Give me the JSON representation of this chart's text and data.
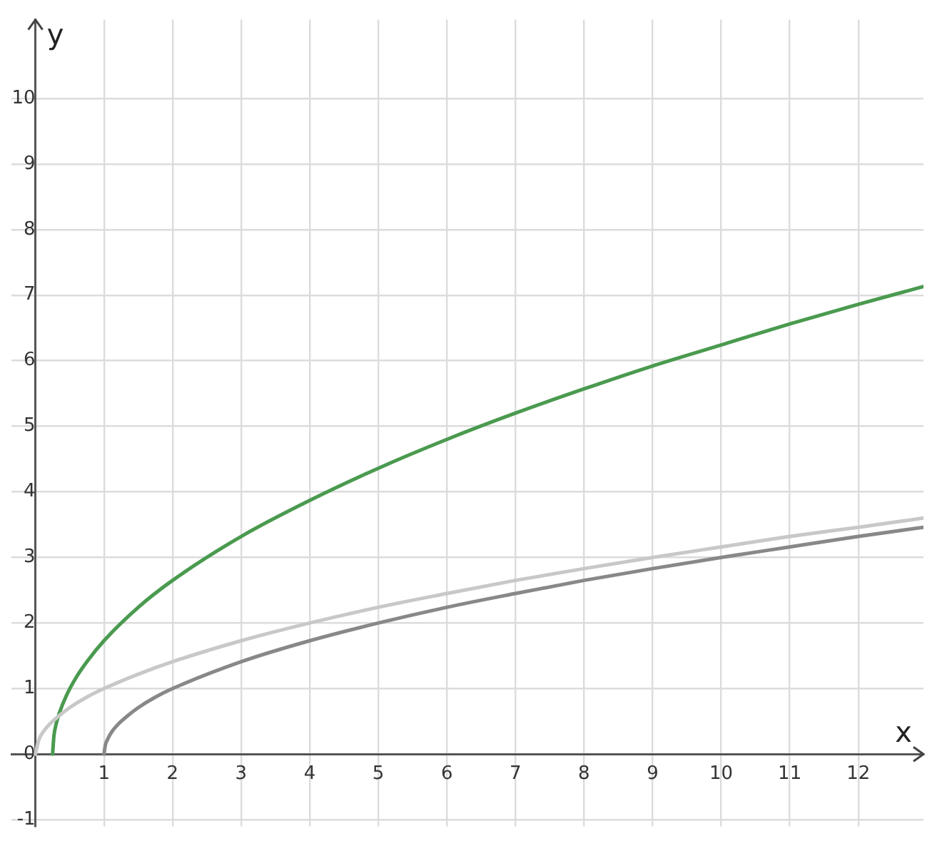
{
  "chart_data": {
    "type": "line",
    "xlabel": "x",
    "ylabel": "y",
    "xlim": [
      -0.35,
      12.95
    ],
    "ylim": [
      -1.1,
      11.2
    ],
    "xticks": [
      {
        "value": 0,
        "label": null
      },
      1,
      2,
      3,
      4,
      5,
      6,
      7,
      8,
      9,
      10,
      11,
      12
    ],
    "yticks": [
      -1,
      0,
      1,
      2,
      3,
      4,
      5,
      6,
      7,
      8,
      9,
      10
    ],
    "grid": true,
    "legend": false,
    "marker": "none",
    "line_style": "solid",
    "series": [
      {
        "color": "#c8c8c8",
        "x": [
          0,
          0.05,
          0.1,
          0.2,
          0.35,
          0.5,
          0.75,
          1,
          1.5,
          2,
          3,
          4,
          5,
          6,
          7,
          8,
          9,
          10,
          11,
          12,
          12.95
        ],
        "values": [
          0,
          0.22,
          0.32,
          0.45,
          0.59,
          0.71,
          0.87,
          1,
          1.22,
          1.41,
          1.73,
          2,
          2.24,
          2.45,
          2.65,
          2.83,
          3,
          3.16,
          3.32,
          3.46,
          3.6
        ]
      },
      {
        "color": "#888888",
        "x": [
          1,
          1.02,
          1.05,
          1.1,
          1.2,
          1.35,
          1.5,
          1.75,
          2,
          3,
          4,
          5,
          6,
          7,
          8,
          9,
          10,
          11,
          12,
          12.95
        ],
        "values": [
          0,
          0.14,
          0.22,
          0.32,
          0.45,
          0.59,
          0.71,
          0.87,
          1,
          1.41,
          1.73,
          2,
          2.24,
          2.45,
          2.65,
          2.83,
          3,
          3.16,
          3.32,
          3.46
        ]
      },
      {
        "color": "#4a9a4f",
        "x": [
          0.25,
          0.27,
          0.3,
          0.35,
          0.45,
          0.6,
          0.75,
          1,
          1.5,
          2,
          3,
          4,
          5,
          6,
          7,
          8,
          9,
          10,
          11,
          12,
          12.95
        ],
        "values": [
          0,
          0.28,
          0.45,
          0.63,
          0.89,
          1.18,
          1.41,
          1.73,
          2.24,
          2.65,
          3.32,
          3.87,
          4.36,
          4.8,
          5.2,
          5.57,
          5.92,
          6.24,
          6.56,
          6.86,
          7.13
        ]
      }
    ]
  }
}
